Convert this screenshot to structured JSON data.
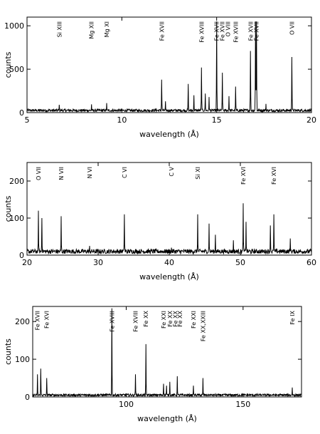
{
  "chart_data": [
    {
      "type": "line",
      "xlabel": "wavelength (Å)",
      "ylabel": "counts",
      "xlim": [
        5,
        20
      ],
      "ylim": [
        0,
        1100
      ],
      "xticks": [
        5,
        10,
        15,
        20
      ],
      "yticks": [
        0,
        500,
        1000
      ],
      "baseline": 25,
      "lines": [
        {
          "x": 6.7,
          "y": 90
        },
        {
          "x": 8.4,
          "y": 95
        },
        {
          "x": 9.2,
          "y": 110
        },
        {
          "x": 11.8,
          "y": 50
        },
        {
          "x": 12.1,
          "y": 380
        },
        {
          "x": 12.3,
          "y": 130
        },
        {
          "x": 13.5,
          "y": 330
        },
        {
          "x": 13.8,
          "y": 200
        },
        {
          "x": 14.2,
          "y": 520
        },
        {
          "x": 14.4,
          "y": 220
        },
        {
          "x": 14.6,
          "y": 180
        },
        {
          "x": 15.0,
          "y": 1050
        },
        {
          "x": 15.3,
          "y": 460
        },
        {
          "x": 15.65,
          "y": 190
        },
        {
          "x": 16.0,
          "y": 300
        },
        {
          "x": 16.78,
          "y": 710
        },
        {
          "x": 17.05,
          "y": 1050
        },
        {
          "x": 17.1,
          "y": 1050
        },
        {
          "x": 17.6,
          "y": 100
        },
        {
          "x": 18.97,
          "y": 640
        }
      ],
      "annotations": [
        {
          "label": "Si XIII",
          "x": 6.7
        },
        {
          "label": "Mg XII",
          "x": 8.4
        },
        {
          "label": "Mg XI",
          "x": 9.2
        },
        {
          "label": "Fe XVII",
          "x": 12.1
        },
        {
          "label": "Fe XVIII",
          "x": 14.2
        },
        {
          "label": "Fe XVII",
          "x": 15.0
        },
        {
          "label": "Fe XVII",
          "x": 15.3
        },
        {
          "label": "O VIII",
          "x": 15.6
        },
        {
          "label": "Fe XVIII",
          "x": 16.0
        },
        {
          "label": "Fe XVII",
          "x": 16.8
        },
        {
          "label": "Fe XVII",
          "x": 17.1
        },
        {
          "label": "O VII",
          "x": 18.97
        }
      ]
    },
    {
      "type": "line",
      "xlabel": "wavelength (Å)",
      "ylabel": "counts",
      "xlim": [
        20,
        60
      ],
      "ylim": [
        0,
        250
      ],
      "xticks": [
        20,
        30,
        40,
        50,
        60
      ],
      "yticks": [
        0,
        100,
        200
      ],
      "baseline": 10,
      "lines": [
        {
          "x": 21.6,
          "y": 120
        },
        {
          "x": 22.1,
          "y": 100
        },
        {
          "x": 24.8,
          "y": 105
        },
        {
          "x": 28.8,
          "y": 25
        },
        {
          "x": 29.1,
          "y": 15
        },
        {
          "x": 33.7,
          "y": 110
        },
        {
          "x": 40.3,
          "y": 20
        },
        {
          "x": 44.0,
          "y": 110
        },
        {
          "x": 45.6,
          "y": 85
        },
        {
          "x": 46.5,
          "y": 55
        },
        {
          "x": 49.0,
          "y": 40
        },
        {
          "x": 50.4,
          "y": 140
        },
        {
          "x": 50.8,
          "y": 90
        },
        {
          "x": 54.2,
          "y": 80
        },
        {
          "x": 54.7,
          "y": 110
        },
        {
          "x": 57.0,
          "y": 45
        }
      ],
      "annotations": [
        {
          "label": "O VII",
          "x": 21.6
        },
        {
          "label": "N VII",
          "x": 24.8
        },
        {
          "label": "N VI",
          "x": 28.8
        },
        {
          "label": "C VI",
          "x": 33.7
        },
        {
          "label": "C V",
          "x": 40.3
        },
        {
          "label": "Si XI",
          "x": 44.0
        },
        {
          "label": "Fe XVI",
          "x": 50.4
        },
        {
          "label": "Fe XVI",
          "x": 54.7
        }
      ]
    },
    {
      "type": "line",
      "xlabel": "wavelength (Å)",
      "ylabel": "counts",
      "xlim": [
        60,
        175
      ],
      "ylim": [
        0,
        240
      ],
      "xticks": [
        100,
        150
      ],
      "yticks": [
        0,
        100,
        200
      ],
      "baseline": 5,
      "lines": [
        {
          "x": 62.0,
          "y": 60
        },
        {
          "x": 63.5,
          "y": 75
        },
        {
          "x": 66.0,
          "y": 50
        },
        {
          "x": 93.9,
          "y": 235
        },
        {
          "x": 103.9,
          "y": 60
        },
        {
          "x": 108.4,
          "y": 140
        },
        {
          "x": 116.0,
          "y": 35
        },
        {
          "x": 117.2,
          "y": 30
        },
        {
          "x": 118.7,
          "y": 40
        },
        {
          "x": 121.8,
          "y": 55
        },
        {
          "x": 128.7,
          "y": 30
        },
        {
          "x": 132.8,
          "y": 50
        },
        {
          "x": 171.1,
          "y": 25
        }
      ],
      "annotations": [
        {
          "label": "Fe XVII",
          "x": 62.0
        },
        {
          "label": "Fe XVI",
          "x": 66.0
        },
        {
          "label": "Fe XVIII",
          "x": 93.9
        },
        {
          "label": "Fe XVIII",
          "x": 103.9
        },
        {
          "label": "Fe XX",
          "x": 108.4
        },
        {
          "label": "Fe XXI",
          "x": 116.0
        },
        {
          "label": "Fe XX",
          "x": 118.7
        },
        {
          "label": "Fe XX",
          "x": 121.0
        },
        {
          "label": "Fe XX",
          "x": 123.0
        },
        {
          "label": "Fe XXI",
          "x": 128.7
        },
        {
          "label": "Fe XX,XXIII",
          "x": 132.8
        },
        {
          "label": "Fe IX",
          "x": 171.1
        }
      ]
    }
  ]
}
